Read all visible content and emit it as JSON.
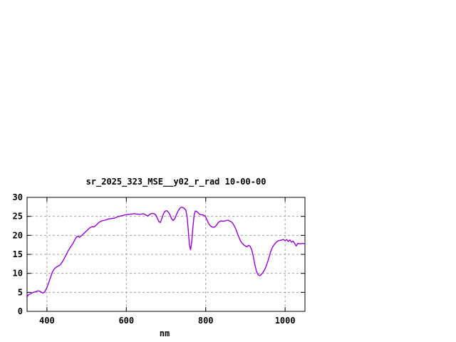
{
  "chart_data": {
    "type": "line",
    "title": "sr_2025_323_MSE__y02_r_rad 10-00-00",
    "xlabel": "nm",
    "ylabel": "",
    "xlim": [
      350,
      1050
    ],
    "ylim": [
      0,
      30
    ],
    "xticks": [
      400,
      600,
      800,
      1000
    ],
    "yticks": [
      0,
      5,
      10,
      15,
      20,
      25,
      30
    ],
    "grid": true,
    "legend": "none",
    "line_color": "#9400d3",
    "grid_color": "#a0a0a0",
    "border_color": "#000000",
    "series": [
      {
        "name": "sr_2025_323_MSE__y02_r_rad 10-00-00",
        "points": [
          [
            350,
            3.8
          ],
          [
            354,
            4.4
          ],
          [
            358,
            4.6
          ],
          [
            362,
            4.8
          ],
          [
            366,
            5.0
          ],
          [
            370,
            5.1
          ],
          [
            374,
            5.3
          ],
          [
            378,
            5.4
          ],
          [
            382,
            5.3
          ],
          [
            386,
            5.0
          ],
          [
            390,
            4.8
          ],
          [
            394,
            5.1
          ],
          [
            398,
            5.8
          ],
          [
            402,
            6.8
          ],
          [
            406,
            8.0
          ],
          [
            410,
            9.2
          ],
          [
            414,
            10.4
          ],
          [
            418,
            11.1
          ],
          [
            422,
            11.5
          ],
          [
            426,
            11.8
          ],
          [
            430,
            12.0
          ],
          [
            434,
            12.3
          ],
          [
            438,
            12.9
          ],
          [
            442,
            13.6
          ],
          [
            446,
            14.4
          ],
          [
            450,
            15.2
          ],
          [
            454,
            16.0
          ],
          [
            458,
            16.7
          ],
          [
            462,
            17.3
          ],
          [
            466,
            17.9
          ],
          [
            470,
            18.8
          ],
          [
            474,
            19.5
          ],
          [
            478,
            19.8
          ],
          [
            482,
            19.5
          ],
          [
            486,
            19.8
          ],
          [
            490,
            20.2
          ],
          [
            494,
            20.6
          ],
          [
            498,
            21.0
          ],
          [
            502,
            21.4
          ],
          [
            506,
            21.8
          ],
          [
            510,
            22.1
          ],
          [
            514,
            22.3
          ],
          [
            518,
            22.2
          ],
          [
            522,
            22.5
          ],
          [
            526,
            22.9
          ],
          [
            530,
            23.3
          ],
          [
            534,
            23.6
          ],
          [
            538,
            23.8
          ],
          [
            542,
            23.9
          ],
          [
            546,
            24.0
          ],
          [
            550,
            24.1
          ],
          [
            554,
            24.3
          ],
          [
            558,
            24.4
          ],
          [
            562,
            24.4
          ],
          [
            566,
            24.5
          ],
          [
            570,
            24.5
          ],
          [
            574,
            24.7
          ],
          [
            578,
            24.9
          ],
          [
            582,
            25.0
          ],
          [
            586,
            25.1
          ],
          [
            590,
            25.2
          ],
          [
            594,
            25.3
          ],
          [
            598,
            25.4
          ],
          [
            602,
            25.5
          ],
          [
            606,
            25.5
          ],
          [
            610,
            25.6
          ],
          [
            614,
            25.6
          ],
          [
            618,
            25.7
          ],
          [
            622,
            25.7
          ],
          [
            626,
            25.6
          ],
          [
            630,
            25.6
          ],
          [
            634,
            25.5
          ],
          [
            638,
            25.6
          ],
          [
            642,
            25.7
          ],
          [
            646,
            25.6
          ],
          [
            650,
            25.3
          ],
          [
            654,
            25.1
          ],
          [
            658,
            25.4
          ],
          [
            662,
            25.7
          ],
          [
            666,
            25.8
          ],
          [
            670,
            25.7
          ],
          [
            674,
            25.4
          ],
          [
            678,
            24.6
          ],
          [
            682,
            23.6
          ],
          [
            686,
            23.4
          ],
          [
            690,
            24.6
          ],
          [
            694,
            25.8
          ],
          [
            698,
            26.4
          ],
          [
            702,
            26.5
          ],
          [
            706,
            26.1
          ],
          [
            710,
            25.4
          ],
          [
            714,
            24.4
          ],
          [
            718,
            23.9
          ],
          [
            722,
            24.4
          ],
          [
            726,
            25.4
          ],
          [
            730,
            26.3
          ],
          [
            734,
            27.0
          ],
          [
            738,
            27.4
          ],
          [
            742,
            27.4
          ],
          [
            746,
            27.1
          ],
          [
            750,
            26.6
          ],
          [
            753,
            25.0
          ],
          [
            756,
            21.5
          ],
          [
            759,
            17.5
          ],
          [
            762,
            16.2
          ],
          [
            765,
            18.5
          ],
          [
            768,
            22.5
          ],
          [
            771,
            25.5
          ],
          [
            774,
            26.4
          ],
          [
            777,
            26.3
          ],
          [
            780,
            26.0
          ],
          [
            783,
            25.7
          ],
          [
            786,
            25.5
          ],
          [
            789,
            25.4
          ],
          [
            792,
            25.4
          ],
          [
            795,
            25.3
          ],
          [
            798,
            25.1
          ],
          [
            801,
            24.6
          ],
          [
            804,
            23.9
          ],
          [
            808,
            23.0
          ],
          [
            812,
            22.5
          ],
          [
            816,
            22.2
          ],
          [
            820,
            22.1
          ],
          [
            824,
            22.3
          ],
          [
            828,
            22.8
          ],
          [
            832,
            23.4
          ],
          [
            836,
            23.7
          ],
          [
            840,
            23.8
          ],
          [
            844,
            23.7
          ],
          [
            848,
            23.8
          ],
          [
            852,
            23.9
          ],
          [
            856,
            24.0
          ],
          [
            860,
            23.8
          ],
          [
            864,
            23.6
          ],
          [
            868,
            23.2
          ],
          [
            872,
            22.5
          ],
          [
            876,
            21.6
          ],
          [
            880,
            20.5
          ],
          [
            884,
            19.4
          ],
          [
            888,
            18.5
          ],
          [
            892,
            17.9
          ],
          [
            896,
            17.5
          ],
          [
            900,
            17.2
          ],
          [
            904,
            17.0
          ],
          [
            908,
            17.4
          ],
          [
            912,
            17.1
          ],
          [
            916,
            16.2
          ],
          [
            920,
            14.4
          ],
          [
            924,
            12.2
          ],
          [
            928,
            10.5
          ],
          [
            932,
            9.6
          ],
          [
            936,
            9.4
          ],
          [
            940,
            9.7
          ],
          [
            944,
            10.2
          ],
          [
            948,
            10.9
          ],
          [
            952,
            11.8
          ],
          [
            956,
            13.0
          ],
          [
            960,
            14.4
          ],
          [
            964,
            15.8
          ],
          [
            968,
            16.8
          ],
          [
            972,
            17.5
          ],
          [
            976,
            18.0
          ],
          [
            980,
            18.4
          ],
          [
            984,
            18.6
          ],
          [
            988,
            18.7
          ],
          [
            992,
            18.8
          ],
          [
            996,
            18.9
          ],
          [
            1000,
            18.6
          ],
          [
            1004,
            18.9
          ],
          [
            1008,
            18.4
          ],
          [
            1012,
            18.8
          ],
          [
            1016,
            18.2
          ],
          [
            1020,
            18.5
          ],
          [
            1024,
            17.9
          ],
          [
            1028,
            17.2
          ],
          [
            1032,
            17.9
          ],
          [
            1036,
            17.8
          ],
          [
            1040,
            17.8
          ],
          [
            1044,
            17.9
          ],
          [
            1048,
            17.8
          ],
          [
            1050,
            17.8
          ]
        ]
      }
    ]
  }
}
